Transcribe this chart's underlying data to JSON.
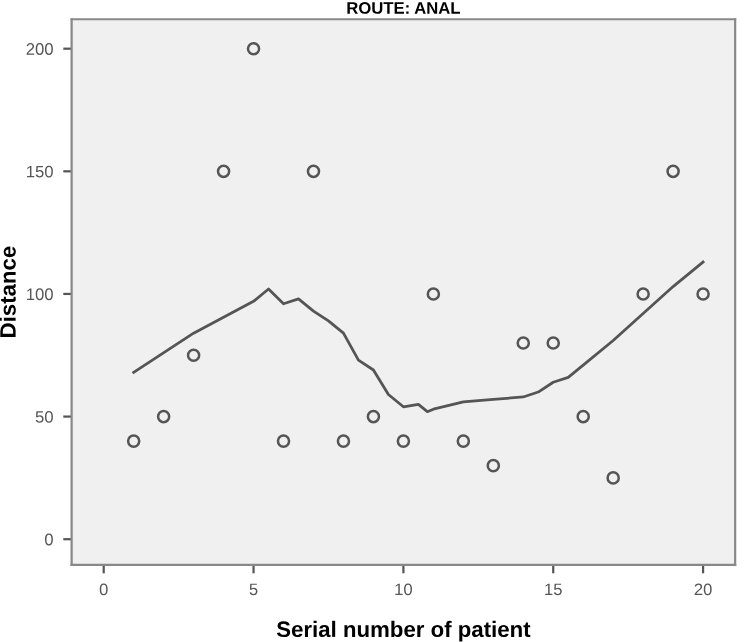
{
  "chart_data": {
    "type": "scatter",
    "title": "ROUTE: ANAL",
    "xlabel": "Serial number of patient",
    "ylabel": "Distance",
    "xlim": [
      -1.07,
      21.07
    ],
    "ylim": [
      -10.5,
      212
    ],
    "xticks": [
      0,
      5,
      10,
      15,
      20
    ],
    "yticks": [
      0,
      50,
      100,
      150,
      200
    ],
    "grid": false,
    "legend": false,
    "series": [
      {
        "marker": "circle",
        "color": "#555555",
        "x": [
          1,
          2,
          3,
          4,
          5,
          6,
          7,
          8,
          9,
          10,
          11,
          12,
          13,
          14,
          15,
          16,
          17,
          18,
          19,
          20
        ],
        "values": [
          40,
          50,
          75,
          150,
          200,
          40,
          150,
          40,
          50,
          40,
          100,
          40,
          30,
          80,
          80,
          50,
          25,
          100,
          150,
          100
        ]
      },
      {
        "type": "line",
        "color": "#555555",
        "line_style": "solid",
        "x": [
          1,
          3,
          5,
          5.5,
          6,
          6.5,
          7,
          7.5,
          8,
          8.5,
          9,
          9.5,
          10,
          10.5,
          10.8,
          11,
          12,
          13,
          14,
          14.5,
          15,
          15.5,
          16,
          17,
          18,
          19,
          20
        ],
        "values": [
          68,
          84,
          97,
          102,
          96,
          98,
          93,
          89,
          84,
          73,
          69,
          59,
          54,
          55,
          52,
          53,
          56,
          57,
          58,
          60,
          64,
          66,
          71,
          81,
          92,
          103,
          113
        ]
      }
    ]
  }
}
